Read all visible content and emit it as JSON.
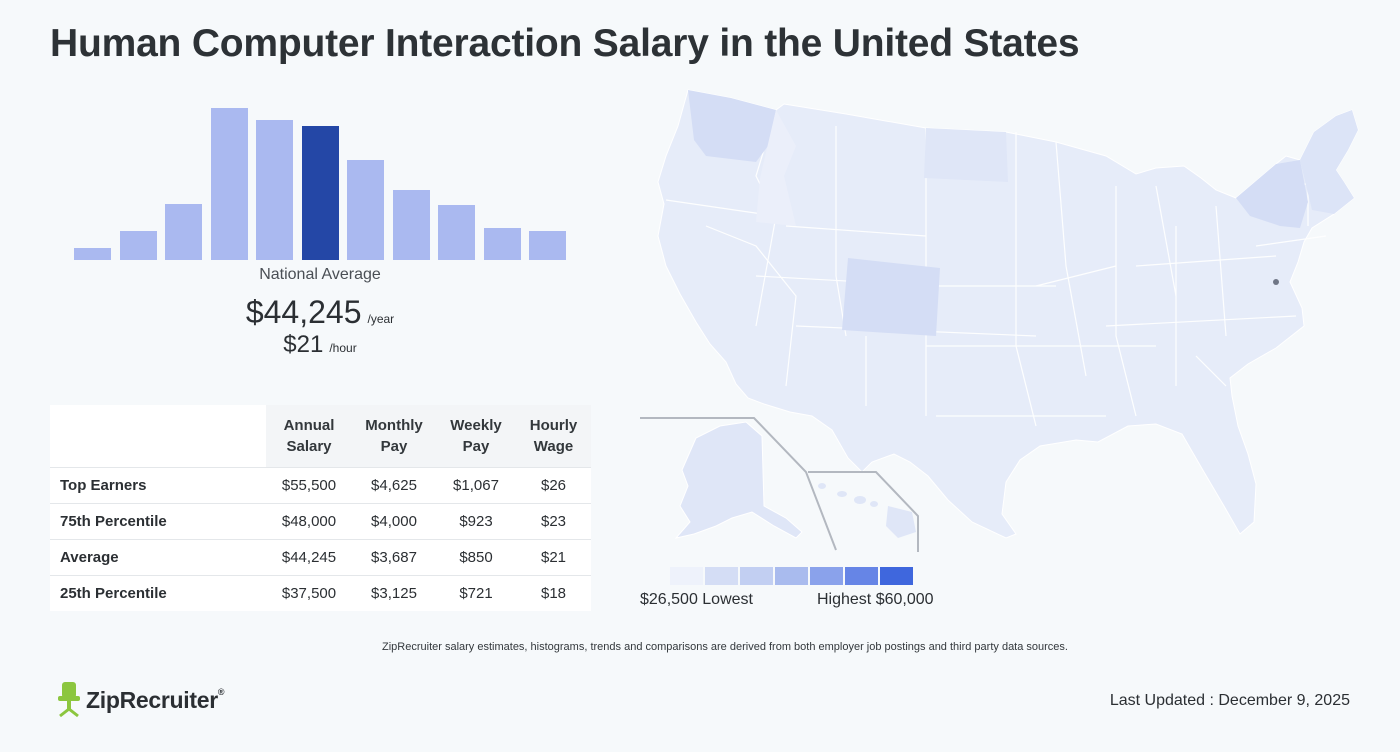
{
  "page": {
    "title": "Human Computer Interaction Salary in the United States"
  },
  "histogram": {
    "bars": [
      0.08,
      0.19,
      0.37,
      1.0,
      0.92,
      0.88,
      0.66,
      0.46,
      0.36,
      0.21,
      0.19
    ],
    "highlight_index": 5,
    "bar_color": "#aab9f0",
    "highlight_color": "#2447a6"
  },
  "summary": {
    "label": "National Average",
    "yearly_amount": "$44,245",
    "yearly_unit": "/year",
    "hourly_amount": "$21",
    "hourly_unit": "/hour"
  },
  "table": {
    "headers": [
      "Annual Salary",
      "Monthly Pay",
      "Weekly Pay",
      "Hourly Wage"
    ],
    "header_lines": [
      [
        "Annual",
        "Salary"
      ],
      [
        "Monthly",
        "Pay"
      ],
      [
        "Weekly",
        "Pay"
      ],
      [
        "Hourly",
        "Wage"
      ]
    ],
    "rows": [
      {
        "label": "Top Earners",
        "values": [
          "$55,500",
          "$4,625",
          "$1,067",
          "$26"
        ]
      },
      {
        "label": "75th Percentile",
        "values": [
          "$48,000",
          "$4,000",
          "$923",
          "$23"
        ]
      },
      {
        "label": "Average",
        "values": [
          "$44,245",
          "$3,687",
          "$850",
          "$21"
        ]
      },
      {
        "label": "25th Percentile",
        "values": [
          "$37,500",
          "$3,125",
          "$721",
          "$18"
        ]
      }
    ]
  },
  "legend": {
    "low_label": "$26,500 Lowest",
    "high_label": "Highest $60,000",
    "colors": [
      "#eef2fb",
      "#d4ddf5",
      "#c2cff2",
      "#a9bbee",
      "#8aa2eb",
      "#6685e6",
      "#3f67dd"
    ]
  },
  "map": {
    "fill_color": "#e6ecf9",
    "stroke_color": "#ffffff"
  },
  "footer": {
    "disclaimer": "ZipRecruiter salary estimates, histograms, trends and comparisons are derived from both employer job postings and third party data sources.",
    "brand": "ZipRecruiter",
    "brand_mark": "®",
    "last_updated": "Last Updated : December 9, 2025"
  }
}
